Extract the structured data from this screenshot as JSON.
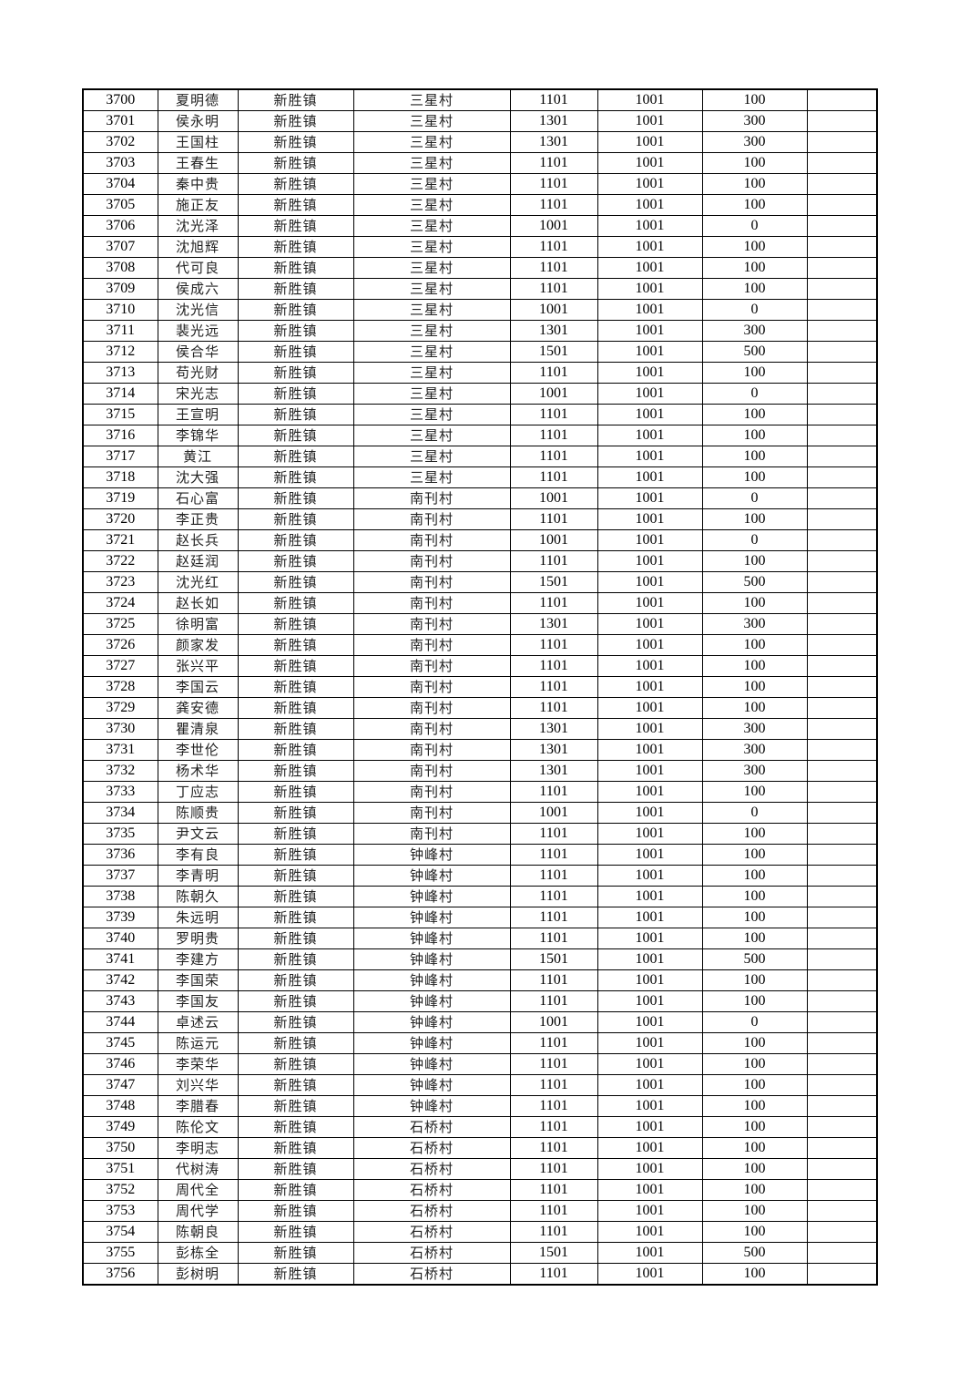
{
  "rows": [
    [
      "3700",
      "夏明德",
      "新胜镇",
      "三星村",
      "1101",
      "1001",
      "100",
      ""
    ],
    [
      "3701",
      "侯永明",
      "新胜镇",
      "三星村",
      "1301",
      "1001",
      "300",
      ""
    ],
    [
      "3702",
      "王国柱",
      "新胜镇",
      "三星村",
      "1301",
      "1001",
      "300",
      ""
    ],
    [
      "3703",
      "王春生",
      "新胜镇",
      "三星村",
      "1101",
      "1001",
      "100",
      ""
    ],
    [
      "3704",
      "秦中贵",
      "新胜镇",
      "三星村",
      "1101",
      "1001",
      "100",
      ""
    ],
    [
      "3705",
      "施正友",
      "新胜镇",
      "三星村",
      "1101",
      "1001",
      "100",
      ""
    ],
    [
      "3706",
      "沈光泽",
      "新胜镇",
      "三星村",
      "1001",
      "1001",
      "0",
      ""
    ],
    [
      "3707",
      "沈旭辉",
      "新胜镇",
      "三星村",
      "1101",
      "1001",
      "100",
      ""
    ],
    [
      "3708",
      "代可良",
      "新胜镇",
      "三星村",
      "1101",
      "1001",
      "100",
      ""
    ],
    [
      "3709",
      "侯成六",
      "新胜镇",
      "三星村",
      "1101",
      "1001",
      "100",
      ""
    ],
    [
      "3710",
      "沈光信",
      "新胜镇",
      "三星村",
      "1001",
      "1001",
      "0",
      ""
    ],
    [
      "3711",
      "裴光远",
      "新胜镇",
      "三星村",
      "1301",
      "1001",
      "300",
      ""
    ],
    [
      "3712",
      "侯合华",
      "新胜镇",
      "三星村",
      "1501",
      "1001",
      "500",
      ""
    ],
    [
      "3713",
      "苟光财",
      "新胜镇",
      "三星村",
      "1101",
      "1001",
      "100",
      ""
    ],
    [
      "3714",
      "宋光志",
      "新胜镇",
      "三星村",
      "1001",
      "1001",
      "0",
      ""
    ],
    [
      "3715",
      "王宣明",
      "新胜镇",
      "三星村",
      "1101",
      "1001",
      "100",
      ""
    ],
    [
      "3716",
      "李锦华",
      "新胜镇",
      "三星村",
      "1101",
      "1001",
      "100",
      ""
    ],
    [
      "3717",
      "黄江",
      "新胜镇",
      "三星村",
      "1101",
      "1001",
      "100",
      ""
    ],
    [
      "3718",
      "沈大强",
      "新胜镇",
      "三星村",
      "1101",
      "1001",
      "100",
      ""
    ],
    [
      "3719",
      "石心富",
      "新胜镇",
      "南刊村",
      "1001",
      "1001",
      "0",
      ""
    ],
    [
      "3720",
      "李正贵",
      "新胜镇",
      "南刊村",
      "1101",
      "1001",
      "100",
      ""
    ],
    [
      "3721",
      "赵长兵",
      "新胜镇",
      "南刊村",
      "1001",
      "1001",
      "0",
      ""
    ],
    [
      "3722",
      "赵廷润",
      "新胜镇",
      "南刊村",
      "1101",
      "1001",
      "100",
      ""
    ],
    [
      "3723",
      "沈光红",
      "新胜镇",
      "南刊村",
      "1501",
      "1001",
      "500",
      ""
    ],
    [
      "3724",
      "赵长如",
      "新胜镇",
      "南刊村",
      "1101",
      "1001",
      "100",
      ""
    ],
    [
      "3725",
      "徐明富",
      "新胜镇",
      "南刊村",
      "1301",
      "1001",
      "300",
      ""
    ],
    [
      "3726",
      "颜家发",
      "新胜镇",
      "南刊村",
      "1101",
      "1001",
      "100",
      ""
    ],
    [
      "3727",
      "张兴平",
      "新胜镇",
      "南刊村",
      "1101",
      "1001",
      "100",
      ""
    ],
    [
      "3728",
      "李国云",
      "新胜镇",
      "南刊村",
      "1101",
      "1001",
      "100",
      ""
    ],
    [
      "3729",
      "龚安德",
      "新胜镇",
      "南刊村",
      "1101",
      "1001",
      "100",
      ""
    ],
    [
      "3730",
      "瞿清泉",
      "新胜镇",
      "南刊村",
      "1301",
      "1001",
      "300",
      ""
    ],
    [
      "3731",
      "李世伦",
      "新胜镇",
      "南刊村",
      "1301",
      "1001",
      "300",
      ""
    ],
    [
      "3732",
      "杨术华",
      "新胜镇",
      "南刊村",
      "1301",
      "1001",
      "300",
      ""
    ],
    [
      "3733",
      "丁应志",
      "新胜镇",
      "南刊村",
      "1101",
      "1001",
      "100",
      ""
    ],
    [
      "3734",
      "陈顺贵",
      "新胜镇",
      "南刊村",
      "1001",
      "1001",
      "0",
      ""
    ],
    [
      "3735",
      "尹文云",
      "新胜镇",
      "南刊村",
      "1101",
      "1001",
      "100",
      ""
    ],
    [
      "3736",
      "李有良",
      "新胜镇",
      "钟峰村",
      "1101",
      "1001",
      "100",
      ""
    ],
    [
      "3737",
      "李青明",
      "新胜镇",
      "钟峰村",
      "1101",
      "1001",
      "100",
      ""
    ],
    [
      "3738",
      "陈朝久",
      "新胜镇",
      "钟峰村",
      "1101",
      "1001",
      "100",
      ""
    ],
    [
      "3739",
      "朱远明",
      "新胜镇",
      "钟峰村",
      "1101",
      "1001",
      "100",
      ""
    ],
    [
      "3740",
      "罗明贵",
      "新胜镇",
      "钟峰村",
      "1101",
      "1001",
      "100",
      ""
    ],
    [
      "3741",
      "李建方",
      "新胜镇",
      "钟峰村",
      "1501",
      "1001",
      "500",
      ""
    ],
    [
      "3742",
      "李国荣",
      "新胜镇",
      "钟峰村",
      "1101",
      "1001",
      "100",
      ""
    ],
    [
      "3743",
      "李国友",
      "新胜镇",
      "钟峰村",
      "1101",
      "1001",
      "100",
      ""
    ],
    [
      "3744",
      "卓述云",
      "新胜镇",
      "钟峰村",
      "1001",
      "1001",
      "0",
      ""
    ],
    [
      "3745",
      "陈运元",
      "新胜镇",
      "钟峰村",
      "1101",
      "1001",
      "100",
      ""
    ],
    [
      "3746",
      "李荣华",
      "新胜镇",
      "钟峰村",
      "1101",
      "1001",
      "100",
      ""
    ],
    [
      "3747",
      "刘兴华",
      "新胜镇",
      "钟峰村",
      "1101",
      "1001",
      "100",
      ""
    ],
    [
      "3748",
      "李腊春",
      "新胜镇",
      "钟峰村",
      "1101",
      "1001",
      "100",
      ""
    ],
    [
      "3749",
      "陈伦文",
      "新胜镇",
      "石桥村",
      "1101",
      "1001",
      "100",
      ""
    ],
    [
      "3750",
      "李明志",
      "新胜镇",
      "石桥村",
      "1101",
      "1001",
      "100",
      ""
    ],
    [
      "3751",
      "代树涛",
      "新胜镇",
      "石桥村",
      "1101",
      "1001",
      "100",
      ""
    ],
    [
      "3752",
      "周代全",
      "新胜镇",
      "石桥村",
      "1101",
      "1001",
      "100",
      ""
    ],
    [
      "3753",
      "周代学",
      "新胜镇",
      "石桥村",
      "1101",
      "1001",
      "100",
      ""
    ],
    [
      "3754",
      "陈朝良",
      "新胜镇",
      "石桥村",
      "1101",
      "1001",
      "100",
      ""
    ],
    [
      "3755",
      "彭栋全",
      "新胜镇",
      "石桥村",
      "1501",
      "1001",
      "500",
      ""
    ],
    [
      "3756",
      "彭树明",
      "新胜镇",
      "石桥村",
      "1101",
      "1001",
      "100",
      ""
    ]
  ]
}
